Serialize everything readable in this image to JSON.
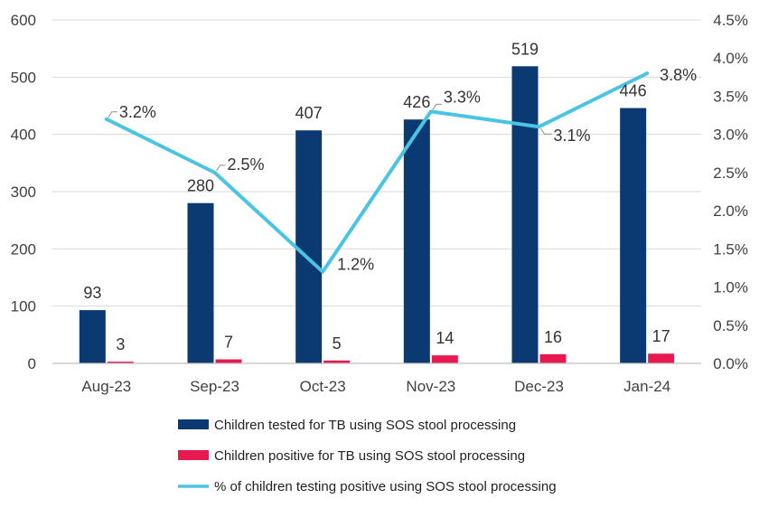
{
  "chart_data": {
    "type": "bar",
    "categories": [
      "Aug-23",
      "Sep-23",
      "Oct-23",
      "Nov-23",
      "Dec-23",
      "Jan-24"
    ],
    "series": [
      {
        "name": "Children tested for TB using SOS stool processing",
        "type": "bar",
        "axis": "left",
        "color": "#0B3A73",
        "values": [
          93,
          280,
          407,
          426,
          519,
          446
        ],
        "labels": [
          "93",
          "280",
          "407",
          "426",
          "519",
          "446"
        ]
      },
      {
        "name": "Children positive for TB using SOS stool processing",
        "type": "bar",
        "axis": "left",
        "color": "#E8194F",
        "values": [
          3,
          7,
          5,
          14,
          16,
          17
        ],
        "labels": [
          "3",
          "7",
          "5",
          "14",
          "16",
          "17"
        ]
      },
      {
        "name": "% of children testing positive using SOS stool processing",
        "type": "line",
        "axis": "right",
        "color": "#4BC3E3",
        "values": [
          3.2,
          2.5,
          1.2,
          3.3,
          3.1,
          3.8
        ],
        "labels": [
          "3.2%",
          "2.5%",
          "1.2%",
          "3.3%",
          "3.1%",
          "3.8%"
        ]
      }
    ],
    "y_left": {
      "ylim": [
        0,
        600
      ],
      "ticks": [
        "0",
        "100",
        "200",
        "300",
        "400",
        "500",
        "600"
      ]
    },
    "y_right": {
      "ylim": [
        0,
        4.5
      ],
      "ticks": [
        "0.0%",
        "0.5%",
        "1.0%",
        "1.5%",
        "2.0%",
        "2.5%",
        "3.0%",
        "3.5%",
        "4.0%",
        "4.5%"
      ]
    },
    "title": "",
    "xlabel": "",
    "ylabel": "",
    "grid": true,
    "legend_position": "bottom",
    "gridline_color": "#D9D9D9",
    "axis_color": "#BFBFBF"
  }
}
